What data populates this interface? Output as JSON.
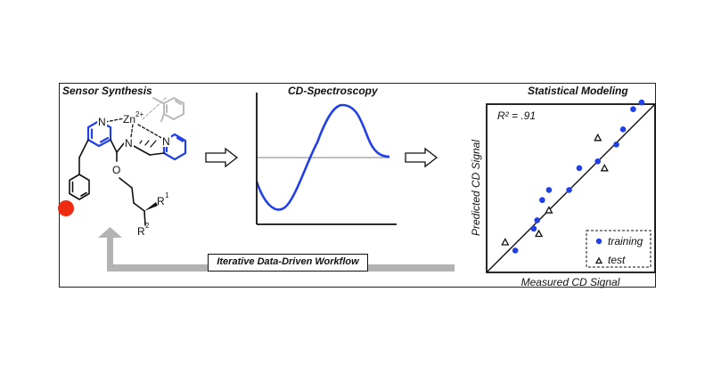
{
  "panels": {
    "synthesis": {
      "title": "Sensor Synthesis",
      "atoms": {
        "n1": "N",
        "zn": "Zn",
        "zn_charge": "2+",
        "n_amine": "N",
        "n_pyr2": "N",
        "o": "O",
        "r1": "R",
        "r1_sup": "1",
        "r2": "R",
        "r2_sup": "2"
      }
    },
    "spectroscopy": {
      "title": "CD-Spectroscopy"
    },
    "modeling": {
      "title": "Statistical Modeling"
    }
  },
  "workflow": {
    "label": "Iterative Data-Driven Workflow"
  },
  "colors": {
    "accent": "#2140e6",
    "substituent": "#ee2a12",
    "pale_ring": "#b9b9b9",
    "workflow_arrow": "#b3b3b3"
  },
  "chart_data": {
    "type": "scatter",
    "title": "",
    "annotation": "R² = .91",
    "xlabel": "Measured CD Signal",
    "ylabel": "Predicted CD Signal",
    "xlim": [
      0,
      1
    ],
    "ylim": [
      0,
      1
    ],
    "grid": false,
    "legend_position": "bottom-right",
    "fit_line": {
      "x": [
        0,
        1
      ],
      "y": [
        0,
        1
      ]
    },
    "series": [
      {
        "name": "training",
        "marker": "filled-circle",
        "color": "#2140e6",
        "points": [
          [
            0.17,
            0.13
          ],
          [
            0.28,
            0.26
          ],
          [
            0.3,
            0.31
          ],
          [
            0.33,
            0.43
          ],
          [
            0.37,
            0.49
          ],
          [
            0.49,
            0.49
          ],
          [
            0.55,
            0.62
          ],
          [
            0.66,
            0.66
          ],
          [
            0.77,
            0.76
          ],
          [
            0.81,
            0.85
          ],
          [
            0.87,
            0.97
          ],
          [
            0.92,
            1.01
          ]
        ]
      },
      {
        "name": "test",
        "marker": "open-triangle",
        "color": "#111111",
        "points": [
          [
            0.11,
            0.18
          ],
          [
            0.31,
            0.23
          ],
          [
            0.37,
            0.37
          ],
          [
            0.66,
            0.8
          ],
          [
            0.7,
            0.62
          ]
        ]
      }
    ]
  }
}
